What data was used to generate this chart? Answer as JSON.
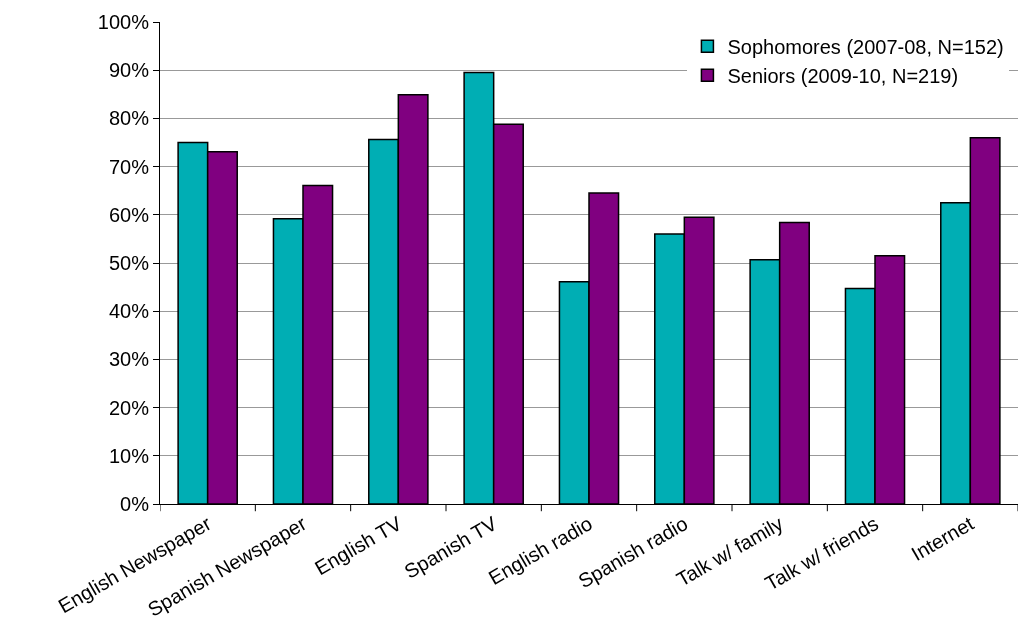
{
  "chart_data": {
    "type": "bar",
    "categories": [
      "English Newspaper",
      "Spanish Newspaper",
      "English TV",
      "Spanish TV",
      "English radio",
      "Spanish radio",
      "Talk w/ family",
      "Talk w/ friends",
      "Internet"
    ],
    "series": [
      {
        "name": "Sophomores (2007-08, N=152)",
        "color": "#00aeb4",
        "values": [
          75.0,
          59.2,
          75.6,
          89.5,
          46.1,
          56.0,
          50.7,
          44.7,
          62.5
        ]
      },
      {
        "name": "Seniors (2009-10, N=219)",
        "color": "#800080",
        "values": [
          73.1,
          66.1,
          84.9,
          78.8,
          64.5,
          59.5,
          58.4,
          51.5,
          76.0
        ]
      }
    ],
    "ylim": [
      0,
      100
    ],
    "yticks": [
      {
        "value": 0,
        "label": "0%"
      },
      {
        "value": 10,
        "label": "10%"
      },
      {
        "value": 20,
        "label": "20%"
      },
      {
        "value": 30,
        "label": "30%"
      },
      {
        "value": 40,
        "label": "40%"
      },
      {
        "value": 50,
        "label": "50%"
      },
      {
        "value": 60,
        "label": "60%"
      },
      {
        "value": 70,
        "label": "70%"
      },
      {
        "value": 80,
        "label": "80%"
      },
      {
        "value": 90,
        "label": "90%"
      },
      {
        "value": 100,
        "label": "100%"
      }
    ],
    "grid": "y",
    "legend": "top right"
  }
}
